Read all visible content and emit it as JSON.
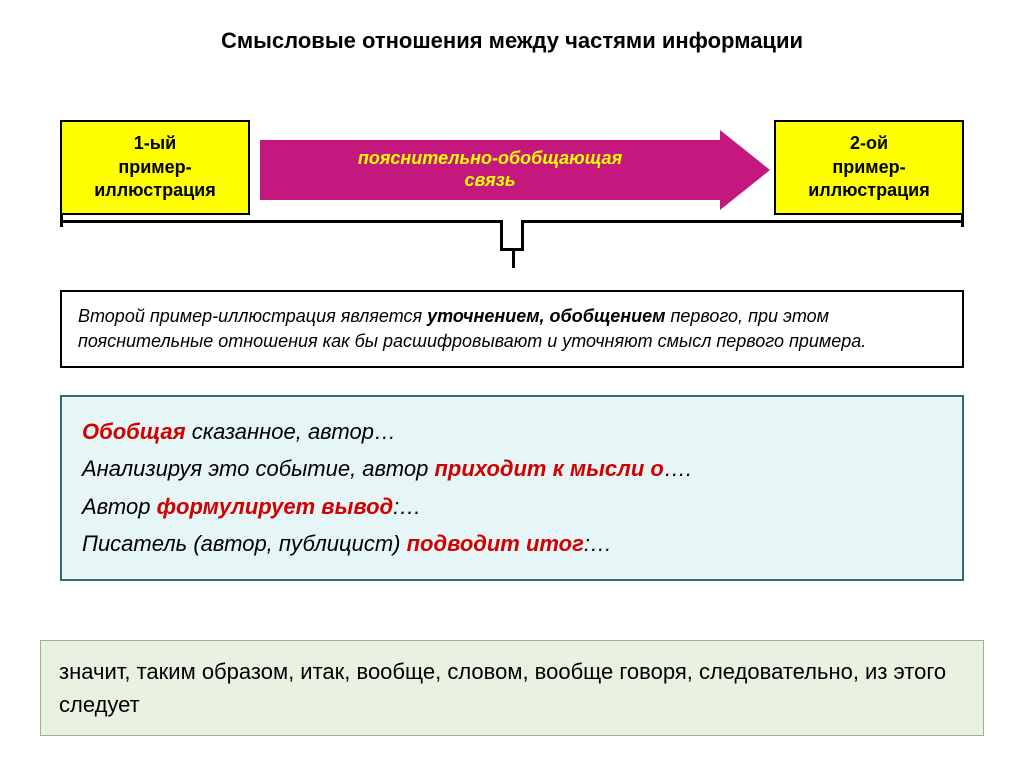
{
  "title": "Смысловые отношения между частями информации",
  "flow": {
    "left_box": "1-ый\nпример-\nиллюстрация",
    "right_box": "2-ой\nпример-\nиллюстрация",
    "arrow_label": "пояснительно-обобщающая\nсвязь",
    "arrow_color": "#c5187f",
    "arrow_text_color": "#ffff00",
    "box_bg": "#ffff00",
    "box_border": "#000000"
  },
  "explain": {
    "prefix": "Второй пример-иллюстрация является ",
    "bold": "уточнением, обобщением",
    "suffix": " первого, при этом пояснительные отношения как бы расшифровывают и уточняют смысл первого примера."
  },
  "phrases": {
    "l1_red": "Обобщая",
    "l1_rest": "сказанное, автор…",
    "l2_a": "Анализируя это событие, автор ",
    "l2_red": "приходит к мысли о",
    "l2_b": "….",
    "l3_a": "Автор ",
    "l3_red": "формулирует вывод",
    "l3_b": ":…",
    "l4_a": "Писатель (автор, публицист) ",
    "l4_red": "подводит итог",
    "l4_b": ":…",
    "bg": "#e6f5f5",
    "border": "#2a7070"
  },
  "bottom": {
    "text": "значит, таким образом, итак, вообще, словом, вообще говоря, следовательно, из этого  следует",
    "bg": "#e9f2e0",
    "border": "#9ab58a"
  },
  "bracket_color": "#000000"
}
